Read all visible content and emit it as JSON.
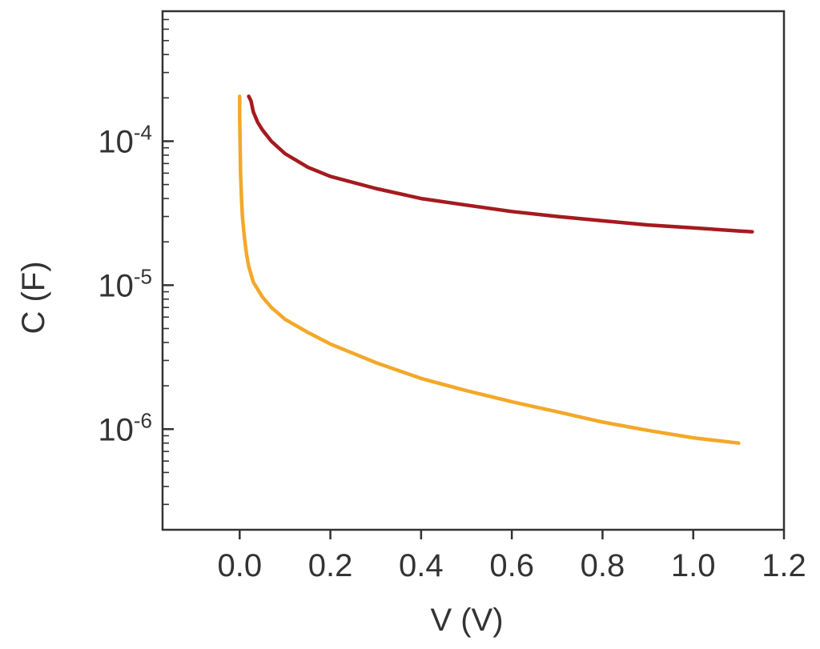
{
  "chart_data": {
    "type": "line",
    "xlabel": "V (V)",
    "ylabel": "C (F)",
    "xlim": [
      -0.17,
      1.2
    ],
    "ylim": [
      2e-07,
      0.0008
    ],
    "y_scale": "log",
    "grid": false,
    "x_ticks": [
      {
        "value": 0.0,
        "label": "0.0"
      },
      {
        "value": 0.2,
        "label": "0.2"
      },
      {
        "value": 0.4,
        "label": "0.4"
      },
      {
        "value": 0.6,
        "label": "0.6"
      },
      {
        "value": 0.8,
        "label": "0.8"
      },
      {
        "value": 1.0,
        "label": "1.0"
      },
      {
        "value": 1.2,
        "label": "1.2"
      }
    ],
    "y_ticks": [
      {
        "value": 0.0001,
        "base": "10",
        "exp": "-4"
      },
      {
        "value": 1e-05,
        "base": "10",
        "exp": "-5"
      },
      {
        "value": 1e-06,
        "base": "10",
        "exp": "-6"
      }
    ],
    "series": [
      {
        "color": "#a51a1f",
        "x": [
          0.02,
          0.025,
          0.03,
          0.04,
          0.05,
          0.07,
          0.1,
          0.15,
          0.2,
          0.3,
          0.4,
          0.5,
          0.6,
          0.7,
          0.8,
          0.9,
          1.0,
          1.1,
          1.13
        ],
        "y": [
          0.000205,
          0.00019,
          0.00016,
          0.000135,
          0.00012,
          0.0001,
          8.2e-05,
          6.6e-05,
          5.7e-05,
          4.7e-05,
          4e-05,
          3.6e-05,
          3.25e-05,
          3e-05,
          2.8e-05,
          2.62e-05,
          2.5e-05,
          2.38e-05,
          2.35e-05
        ]
      },
      {
        "color": "#f4a82a",
        "x": [
          0.0,
          0.0,
          0.001,
          0.002,
          0.004,
          0.006,
          0.01,
          0.015,
          0.02,
          0.03,
          0.05,
          0.07,
          0.1,
          0.15,
          0.2,
          0.3,
          0.4,
          0.5,
          0.6,
          0.7,
          0.8,
          0.9,
          1.0,
          1.1
        ],
        "y": [
          0.000205,
          0.00015,
          9e-05,
          6e-05,
          4e-05,
          3e-05,
          2.2e-05,
          1.65e-05,
          1.35e-05,
          1.05e-05,
          8.3e-06,
          7e-06,
          5.8e-06,
          4.7e-06,
          3.9e-06,
          2.9e-06,
          2.25e-06,
          1.85e-06,
          1.55e-06,
          1.32e-06,
          1.12e-06,
          9.8e-07,
          8.7e-07,
          8e-07
        ]
      }
    ]
  }
}
